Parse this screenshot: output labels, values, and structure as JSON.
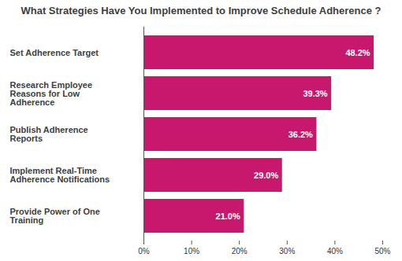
{
  "chart_data": {
    "type": "bar",
    "orientation": "horizontal",
    "title": "What Strategies Have You Implemented to Improve Schedule Adherence ?",
    "categories": [
      "Set Adherence Target",
      "Research Employee Reasons for Low Adherence",
      "Publish Adherence Reports",
      "Implement Real-Time Adherence Notifications",
      "Provide Power of One Training"
    ],
    "values": [
      48.2,
      39.3,
      36.2,
      29.0,
      21.0
    ],
    "value_labels": [
      "48.2%",
      "39.3%",
      "36.2%",
      "29.0%",
      "21.0%"
    ],
    "data_labels": true,
    "color": "#c8186e",
    "xlim": [
      0,
      50
    ],
    "xticks": [
      {
        "value": 0,
        "label": "0%"
      },
      {
        "value": 10,
        "label": "10%"
      },
      {
        "value": 20,
        "label": "20%"
      },
      {
        "value": 30,
        "label": "30%"
      },
      {
        "value": 40,
        "label": "40%"
      },
      {
        "value": 50,
        "label": "50%"
      }
    ],
    "grid": false
  }
}
